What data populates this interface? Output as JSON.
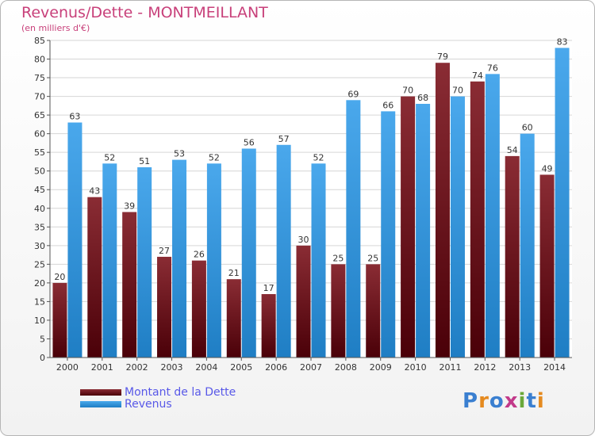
{
  "chart_data": {
    "type": "bar",
    "title": "Revenus/Dette - MONTMEILLANT",
    "subtitle": "(en milliers d'€)",
    "categories": [
      "2000",
      "2001",
      "2002",
      "2003",
      "2004",
      "2005",
      "2006",
      "2007",
      "2008",
      "2009",
      "2010",
      "2011",
      "2012",
      "2013",
      "2014"
    ],
    "series": [
      {
        "name": "Montant de la Dette",
        "values": [
          20,
          43,
          39,
          27,
          26,
          21,
          17,
          30,
          25,
          25,
          70,
          79,
          74,
          54,
          49
        ],
        "color": "#7a1a24"
      },
      {
        "name": "Revenus",
        "values": [
          63,
          52,
          51,
          53,
          52,
          56,
          57,
          52,
          69,
          66,
          68,
          70,
          76,
          60,
          83
        ],
        "color": "#3d9be0"
      }
    ],
    "ylim": [
      0,
      85
    ],
    "yticks": [
      0,
      5,
      10,
      15,
      20,
      25,
      30,
      35,
      40,
      45,
      50,
      55,
      60,
      65,
      70,
      75,
      80,
      85
    ],
    "grid": true,
    "legend_position": "bottom-left"
  },
  "logo": {
    "letters": [
      "P",
      "r",
      "o",
      "x",
      "i",
      "t",
      "i"
    ],
    "colors": [
      "#3a7fd0",
      "#e58a1f",
      "#3a7fd0",
      "#c23a8a",
      "#6aa83a",
      "#3a7fd0",
      "#e58a1f"
    ]
  }
}
